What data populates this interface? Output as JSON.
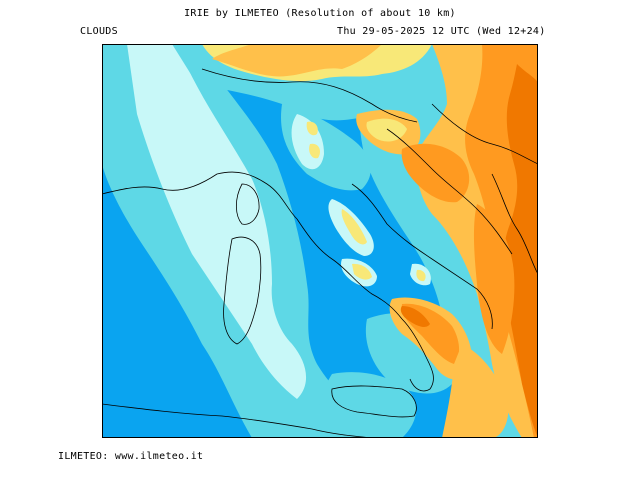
{
  "header": {
    "title": "IRIE by ILMETEO (Resolution of about 10 km)",
    "field": "CLOUDS",
    "run": "Thu 29-05-2025 12 UTC (Wed 12+24)"
  },
  "footer": {
    "credit": "ILMETEO: www.ilmeteo.it"
  },
  "map": {
    "colors": {
      "clear": "#0aa4f0",
      "low": "#5ed8e6",
      "medium": "#c8f8f8",
      "high": "#f8e878",
      "very_high": "#ffc04a",
      "dense": "#ff9a20",
      "overcast": "#f07800",
      "coast": "#000000"
    }
  }
}
